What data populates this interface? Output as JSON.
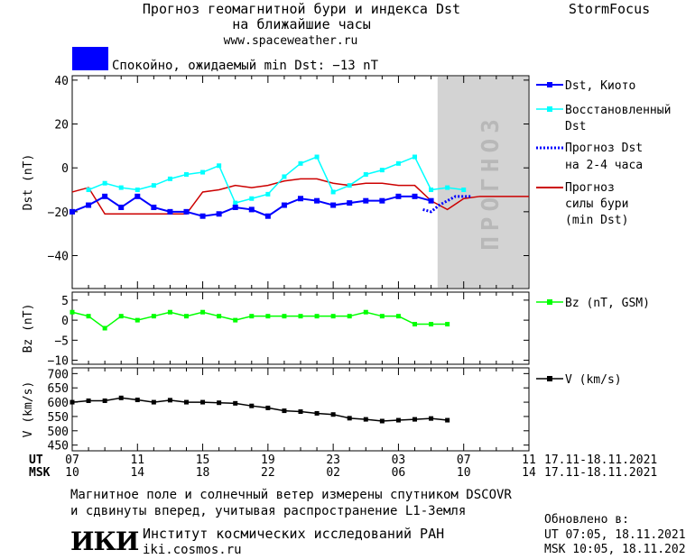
{
  "header": {
    "title_line1": "Прогноз геомагнитной бури и индекса Dst",
    "title_line2": "на ближайшие часы",
    "site": "www.spaceweather.ru",
    "brand": "StormFocus"
  },
  "status": {
    "color": "#0000ff",
    "text": "Спокойно, ожидаемый min Dst: −13 nT"
  },
  "forecast_label": "ПРОГНОЗ",
  "time_axis": {
    "ut_label": "UT",
    "msk_label": "MSK",
    "ut_ticks": [
      "07",
      "11",
      "15",
      "19",
      "23",
      "03",
      "07",
      "11"
    ],
    "msk_ticks": [
      "10",
      "14",
      "18",
      "22",
      "02",
      "06",
      "10",
      "14"
    ],
    "ut_range": "17.11-18.11.2021",
    "msk_range": "17.11-18.11.2021"
  },
  "footer": {
    "note_line1": "Магнитное поле и солнечный ветер измерены спутником DSCOVR",
    "note_line2": "и сдвинуты вперед, учитывая распространение L1-Земля",
    "institute": "Институт космических исследований РАН",
    "institute_site": "iki.cosmos.ru",
    "logo_text": "ИКИ",
    "updated_label": "Обновлено в:",
    "updated_ut": "UT  07:05, 18.11.2021",
    "updated_msk": "MSK 10:05, 18.11.2021"
  },
  "chart_data": [
    {
      "type": "line",
      "ylabel": "Dst (nT)",
      "ylim": [
        -55,
        42
      ],
      "yticks": [
        40,
        20,
        0,
        -20,
        -40
      ],
      "x_unit": "hours from 07 UT, 17.11.2021",
      "xlim": [
        0,
        28
      ],
      "forecast_region": [
        22.4,
        28
      ],
      "legend": "right",
      "series": [
        {
          "name": "Dst, Киото",
          "color": "#0000ff",
          "x": [
            0,
            1,
            2,
            3,
            4,
            5,
            6,
            7,
            8,
            9,
            10,
            11,
            12,
            13,
            14,
            15,
            16,
            17,
            18,
            19,
            20,
            21,
            22
          ],
          "y": [
            -20,
            -17,
            -13,
            -18,
            -13,
            -18,
            -20,
            -20,
            -22,
            -21,
            -18,
            -19,
            -22,
            -17,
            -14,
            -15,
            -17,
            -16,
            -15,
            -15,
            -13,
            -13,
            -15
          ]
        },
        {
          "name": "Восстановленный Dst",
          "color": "#00ffff",
          "x": [
            1,
            2,
            3,
            4,
            5,
            6,
            7,
            8,
            9,
            10,
            11,
            12,
            13,
            14,
            15,
            16,
            17,
            18,
            19,
            20,
            21,
            22,
            23,
            24
          ],
          "y": [
            -10,
            -7,
            -9,
            -10,
            -8,
            -5,
            -3,
            -2,
            1,
            -16,
            -14,
            -12,
            -4,
            2,
            5,
            -11,
            -8,
            -3,
            -1,
            2,
            5,
            -10,
            -9,
            -10
          ]
        },
        {
          "name": "Прогноз Dst на 2-4 часа",
          "color": "#0000ff",
          "x": [
            21.5,
            22.0,
            22.5,
            23.5,
            24.5
          ],
          "y": [
            -19,
            -20,
            -17,
            -13,
            -13
          ]
        },
        {
          "name": "Прогноз силы бури (min Dst)",
          "color": "#cc0000",
          "x": [
            0,
            1,
            2,
            3,
            4,
            5,
            6,
            7,
            8,
            9,
            10,
            11,
            12,
            13,
            14,
            15,
            16,
            17,
            18,
            19,
            20,
            21,
            22,
            23,
            24,
            25,
            26,
            27,
            28
          ],
          "y": [
            -11,
            -9,
            -21,
            -21,
            -21,
            -21,
            -21,
            -21,
            -11,
            -10,
            -8,
            -9,
            -8,
            -6,
            -5,
            -5,
            -7,
            -8,
            -7,
            -7,
            -8,
            -8,
            -15,
            -19,
            -14,
            -13,
            -13,
            -13,
            -13
          ]
        }
      ]
    },
    {
      "type": "line",
      "ylabel": "Bz (nT)",
      "ylim": [
        -11,
        7
      ],
      "yticks": [
        5,
        0,
        -5,
        -10
      ],
      "xlim": [
        0,
        28
      ],
      "series": [
        {
          "name": "Bz (nT, GSM)",
          "color": "#00ff00",
          "x": [
            0,
            1,
            2,
            3,
            4,
            5,
            6,
            7,
            8,
            9,
            10,
            11,
            12,
            13,
            14,
            15,
            16,
            17,
            18,
            19,
            20,
            21,
            22,
            23
          ],
          "y": [
            2,
            1,
            -2,
            1,
            0,
            1,
            2,
            1,
            2,
            1,
            0,
            1,
            1,
            1,
            1,
            1,
            1,
            1,
            2,
            1,
            1,
            -1,
            -1,
            -1
          ]
        }
      ]
    },
    {
      "type": "line",
      "ylabel": "V (km/s)",
      "ylim": [
        430,
        720
      ],
      "yticks": [
        700,
        650,
        600,
        550,
        500,
        450
      ],
      "xlim": [
        0,
        28
      ],
      "series": [
        {
          "name": "V (km/s)",
          "color": "#000000",
          "x": [
            0,
            1,
            2,
            3,
            4,
            5,
            6,
            7,
            8,
            9,
            10,
            11,
            12,
            13,
            14,
            15,
            16,
            17,
            18,
            19,
            20,
            21,
            22,
            23
          ],
          "y": [
            600,
            605,
            605,
            615,
            608,
            600,
            607,
            600,
            600,
            598,
            596,
            587,
            580,
            570,
            567,
            561,
            557,
            544,
            540,
            534,
            537,
            540,
            543,
            537
          ]
        }
      ]
    }
  ]
}
